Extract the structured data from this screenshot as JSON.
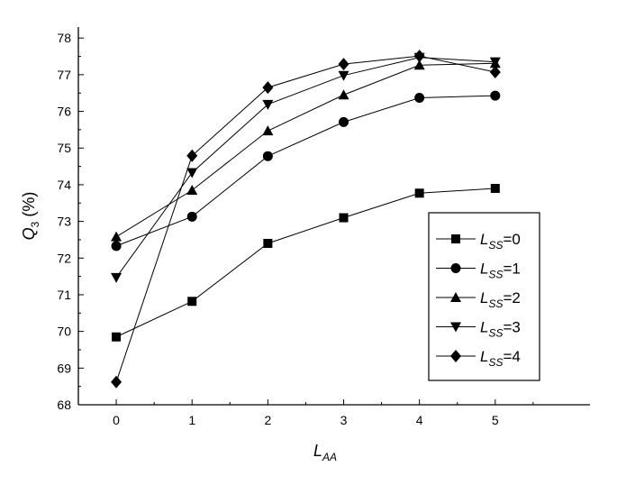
{
  "chart_data": {
    "type": "line",
    "xlabel": "L",
    "xlabel_sub": "AA",
    "ylabel": "Q",
    "ylabel_sub": "3",
    "ylabel_unit": "(%)",
    "xlim": [
      -0.5,
      6.25
    ],
    "ylim": [
      68,
      78.3
    ],
    "x": [
      0,
      1,
      2,
      3,
      4,
      5
    ],
    "xticks": [
      "0",
      "1",
      "2",
      "3",
      "4",
      "5"
    ],
    "yticks": [
      "68",
      "69",
      "70",
      "71",
      "72",
      "73",
      "74",
      "75",
      "76",
      "77",
      "78"
    ],
    "grid": false,
    "legend_position": "right",
    "series": [
      {
        "name": "0",
        "marker": "square",
        "values": [
          69.85,
          70.82,
          72.4,
          73.1,
          73.77,
          73.9
        ]
      },
      {
        "name": "1",
        "marker": "circle",
        "values": [
          72.33,
          73.13,
          74.78,
          75.71,
          76.37,
          76.43
        ]
      },
      {
        "name": "2",
        "marker": "triangle-up",
        "values": [
          72.58,
          73.85,
          75.47,
          76.45,
          77.26,
          77.31
        ]
      },
      {
        "name": "3",
        "marker": "triangle-down",
        "values": [
          71.47,
          74.33,
          76.19,
          76.98,
          77.47,
          77.35
        ]
      },
      {
        "name": "4",
        "marker": "diamond",
        "values": [
          68.62,
          74.79,
          76.65,
          77.29,
          77.51,
          77.07
        ]
      }
    ],
    "legend_prefix": "L",
    "legend_prefix_sub": "SS",
    "legend_sep": "="
  }
}
